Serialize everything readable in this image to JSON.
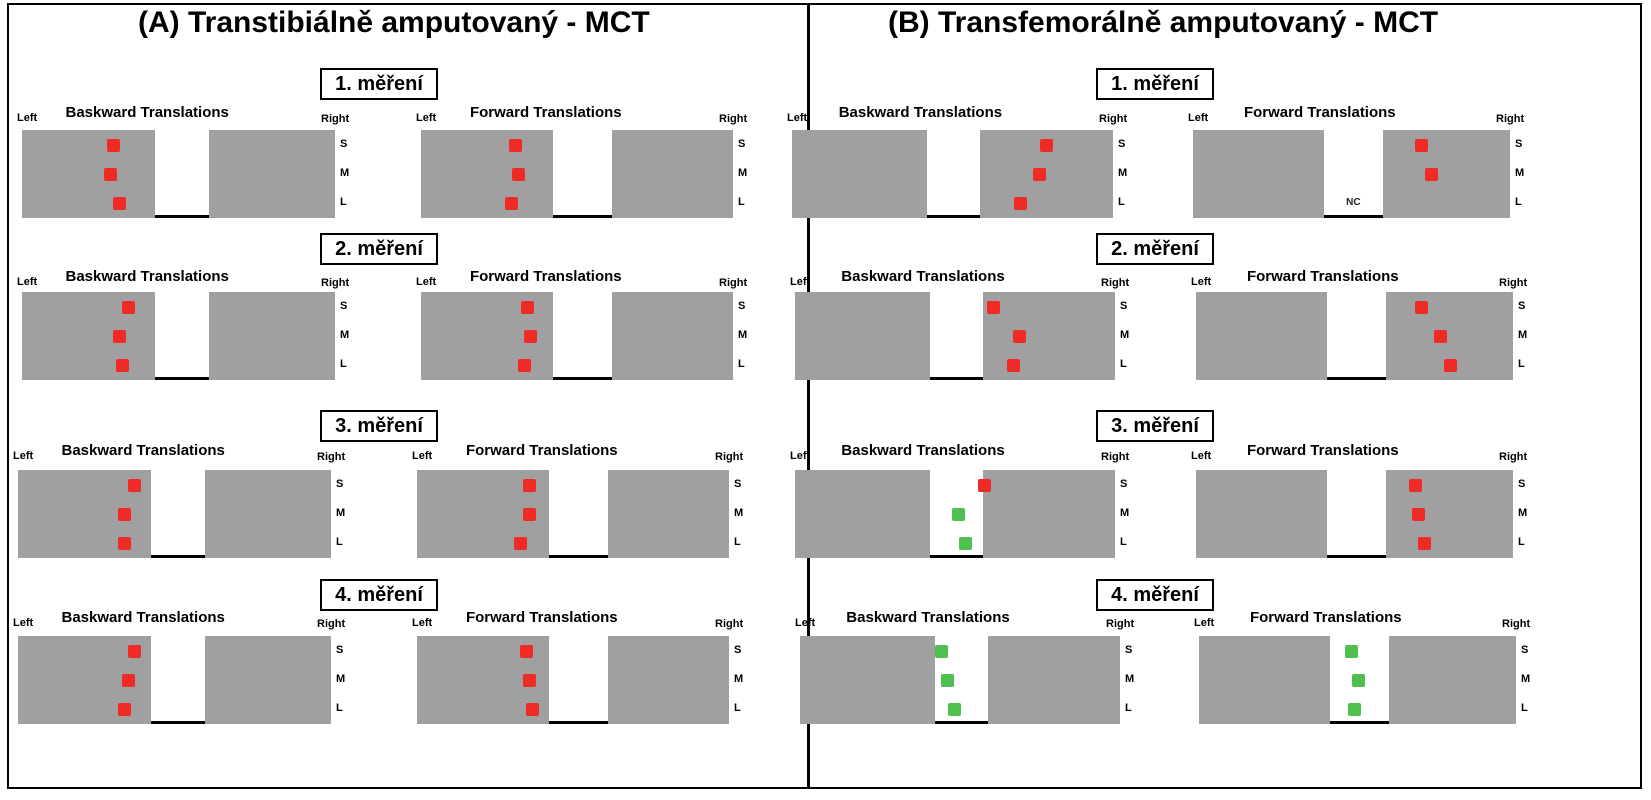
{
  "labels": {
    "left": "Left",
    "right": "Right",
    "nc": "NC"
  },
  "panels": [
    {
      "title": "(A) Transtibiálně amputovaný - MCT",
      "sessions": [
        {
          "title": "1. měření",
          "plots": [
            {
              "title": "Baskward Translations",
              "levels": [
                "S",
                "M",
                "L"
              ],
              "markers": [
                {
                  "level": "S",
                  "value": 0.29,
                  "color": "red"
                },
                {
                  "level": "M",
                  "value": 0.28,
                  "color": "red"
                },
                {
                  "level": "L",
                  "value": 0.31,
                  "color": "red"
                }
              ]
            },
            {
              "title": "Forward Translations",
              "levels": [
                "S",
                "M",
                "L"
              ],
              "markers": [
                {
                  "level": "S",
                  "value": 0.3,
                  "color": "red"
                },
                {
                  "level": "M",
                  "value": 0.31,
                  "color": "red"
                },
                {
                  "level": "L",
                  "value": 0.29,
                  "color": "red"
                }
              ]
            }
          ]
        },
        {
          "title": "2. měření",
          "plots": [
            {
              "title": "Baskward Translations",
              "levels": [
                "S",
                "M",
                "L"
              ],
              "markers": [
                {
                  "level": "S",
                  "value": 0.34,
                  "color": "red"
                },
                {
                  "level": "M",
                  "value": 0.31,
                  "color": "red"
                },
                {
                  "level": "L",
                  "value": 0.32,
                  "color": "red"
                }
              ]
            },
            {
              "title": "Forward Translations",
              "levels": [
                "S",
                "M",
                "L"
              ],
              "markers": [
                {
                  "level": "S",
                  "value": 0.34,
                  "color": "red"
                },
                {
                  "level": "M",
                  "value": 0.35,
                  "color": "red"
                },
                {
                  "level": "L",
                  "value": 0.33,
                  "color": "red"
                }
              ]
            }
          ]
        },
        {
          "title": "3. měření",
          "plots": [
            {
              "title": "Baskward Translations",
              "levels": [
                "S",
                "M",
                "L"
              ],
              "markers": [
                {
                  "level": "S",
                  "value": 0.37,
                  "color": "red"
                },
                {
                  "level": "M",
                  "value": 0.34,
                  "color": "red"
                },
                {
                  "level": "L",
                  "value": 0.34,
                  "color": "red"
                }
              ]
            },
            {
              "title": "Forward Translations",
              "levels": [
                "S",
                "M",
                "L"
              ],
              "markers": [
                {
                  "level": "S",
                  "value": 0.36,
                  "color": "red"
                },
                {
                  "level": "M",
                  "value": 0.36,
                  "color": "red"
                },
                {
                  "level": "L",
                  "value": 0.33,
                  "color": "red"
                }
              ]
            }
          ]
        },
        {
          "title": "4. měření",
          "plots": [
            {
              "title": "Baskward Translations",
              "levels": [
                "S",
                "M",
                "L"
              ],
              "markers": [
                {
                  "level": "S",
                  "value": 0.37,
                  "color": "red"
                },
                {
                  "level": "M",
                  "value": 0.35,
                  "color": "red"
                },
                {
                  "level": "L",
                  "value": 0.34,
                  "color": "red"
                }
              ]
            },
            {
              "title": "Forward Translations",
              "levels": [
                "S",
                "M",
                "L"
              ],
              "markers": [
                {
                  "level": "S",
                  "value": 0.35,
                  "color": "red"
                },
                {
                  "level": "M",
                  "value": 0.36,
                  "color": "red"
                },
                {
                  "level": "L",
                  "value": 0.37,
                  "color": "red"
                }
              ]
            }
          ]
        }
      ]
    },
    {
      "title": "(B) Transfemorálně amputovaný - MCT",
      "sessions": [
        {
          "title": "1. měření",
          "plots": [
            {
              "title": "Baskward Translations",
              "levels": [
                "S",
                "M",
                "L"
              ],
              "markers": [
                {
                  "level": "S",
                  "value": 0.79,
                  "color": "red"
                },
                {
                  "level": "M",
                  "value": 0.77,
                  "color": "red"
                },
                {
                  "level": "L",
                  "value": 0.71,
                  "color": "red"
                }
              ]
            },
            {
              "title": "Forward Translations",
              "levels": [
                "S",
                "M",
                "L"
              ],
              "markers": [
                {
                  "level": "S",
                  "value": 0.72,
                  "color": "red"
                },
                {
                  "level": "M",
                  "value": 0.75,
                  "color": "red"
                }
              ],
              "nc_level": "L"
            }
          ]
        },
        {
          "title": "2. měření",
          "plots": [
            {
              "title": "Baskward Translations",
              "levels": [
                "S",
                "M",
                "L"
              ],
              "markers": [
                {
                  "level": "S",
                  "value": 0.62,
                  "color": "red"
                },
                {
                  "level": "M",
                  "value": 0.7,
                  "color": "red"
                },
                {
                  "level": "L",
                  "value": 0.68,
                  "color": "red"
                }
              ]
            },
            {
              "title": "Forward Translations",
              "levels": [
                "S",
                "M",
                "L"
              ],
              "markers": [
                {
                  "level": "S",
                  "value": 0.71,
                  "color": "red"
                },
                {
                  "level": "M",
                  "value": 0.77,
                  "color": "red"
                },
                {
                  "level": "L",
                  "value": 0.8,
                  "color": "red"
                }
              ]
            }
          ]
        },
        {
          "title": "3. měření",
          "plots": [
            {
              "title": "Baskward Translations",
              "levels": [
                "S",
                "M",
                "L"
              ],
              "markers": [
                {
                  "level": "S",
                  "value": 0.59,
                  "color": "red"
                },
                {
                  "level": "M",
                  "value": 0.51,
                  "color": "green"
                },
                {
                  "level": "L",
                  "value": 0.53,
                  "color": "green"
                }
              ]
            },
            {
              "title": "Forward Translations",
              "levels": [
                "S",
                "M",
                "L"
              ],
              "markers": [
                {
                  "level": "S",
                  "value": 0.69,
                  "color": "red"
                },
                {
                  "level": "M",
                  "value": 0.7,
                  "color": "red"
                },
                {
                  "level": "L",
                  "value": 0.72,
                  "color": "red"
                }
              ]
            }
          ]
        },
        {
          "title": "4. měření",
          "plots": [
            {
              "title": "Baskward Translations",
              "levels": [
                "S",
                "M",
                "L"
              ],
              "markers": [
                {
                  "level": "S",
                  "value": 0.44,
                  "color": "green"
                },
                {
                  "level": "M",
                  "value": 0.46,
                  "color": "green"
                },
                {
                  "level": "L",
                  "value": 0.48,
                  "color": "green"
                }
              ]
            },
            {
              "title": "Forward Translations",
              "levels": [
                "S",
                "M",
                "L"
              ],
              "markers": [
                {
                  "level": "S",
                  "value": 0.48,
                  "color": "green"
                },
                {
                  "level": "M",
                  "value": 0.5,
                  "color": "green"
                },
                {
                  "level": "L",
                  "value": 0.49,
                  "color": "green"
                }
              ]
            }
          ]
        }
      ]
    }
  ],
  "colors": {
    "red": "#ee2b24",
    "green": "#4fbf4f",
    "plot_bg": "#a0a0a0"
  }
}
